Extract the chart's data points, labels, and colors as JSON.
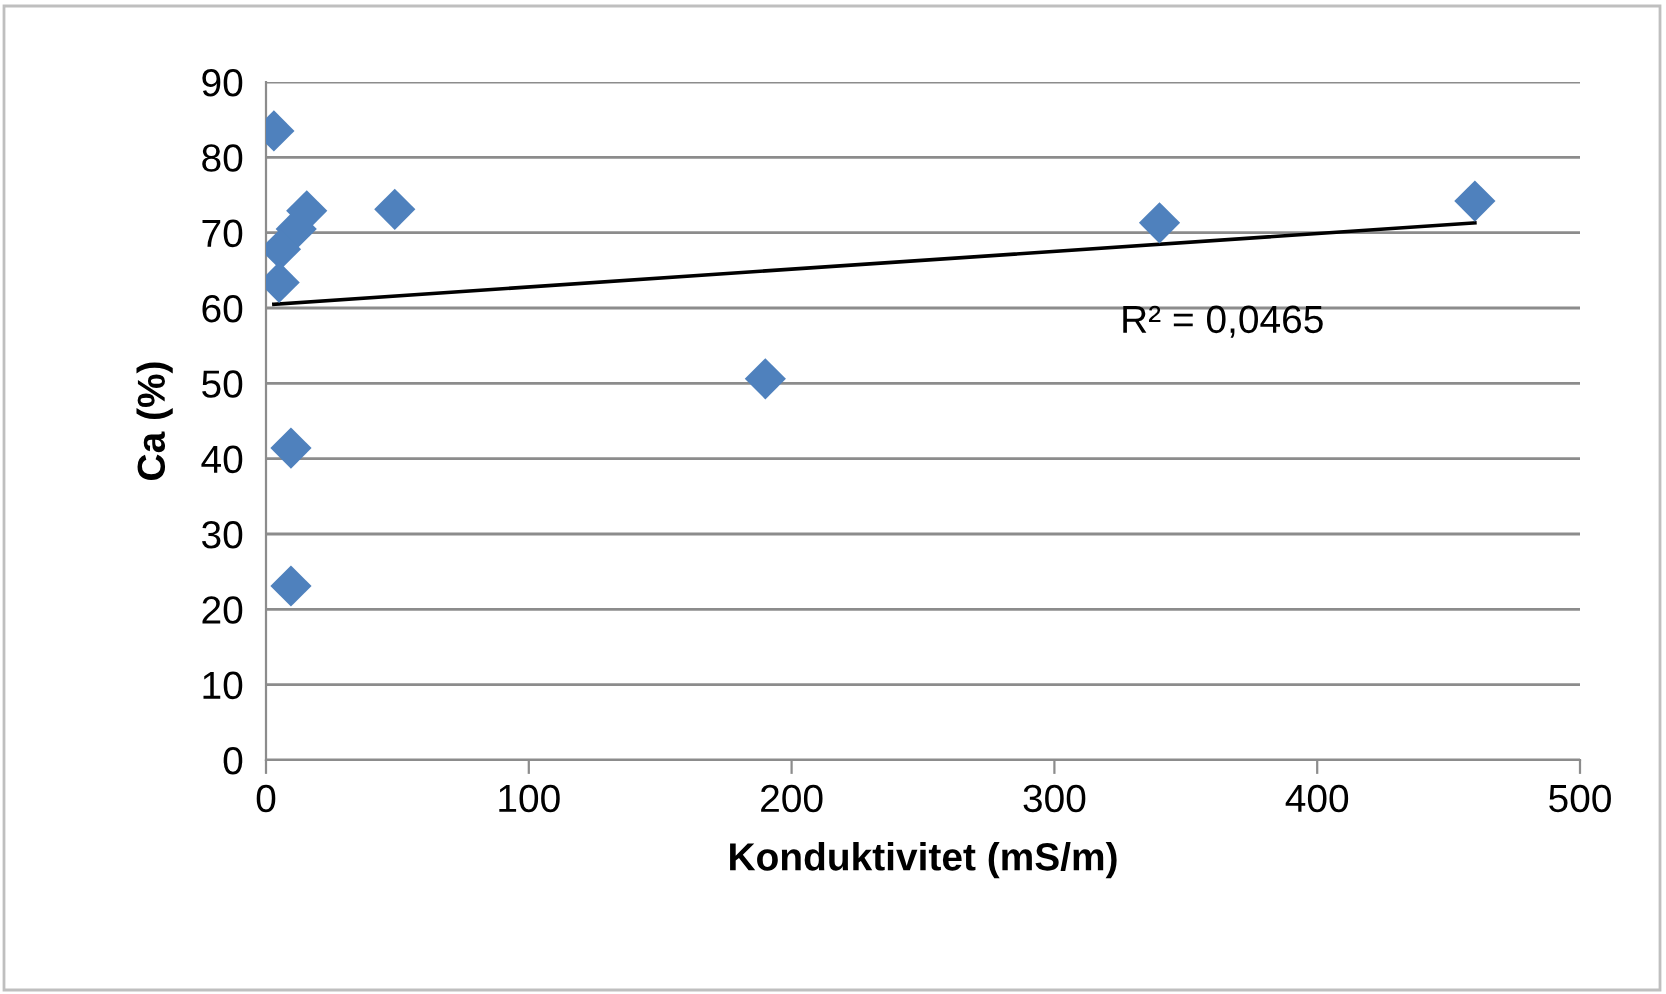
{
  "chart_data": {
    "type": "scatter",
    "xlabel": "Konduktivitet (mS/m)",
    "ylabel": "Ca (%)",
    "xlim": [
      0,
      500
    ],
    "xticks": [
      0,
      100,
      200,
      300,
      400,
      500
    ],
    "ylim": [
      0,
      90
    ],
    "yticks": [
      0,
      10,
      20,
      30,
      40,
      50,
      60,
      70,
      80,
      90
    ],
    "grid": "y",
    "series": [
      {
        "marker": "diamond",
        "color": "#4f81bd",
        "x": [
          3,
          15.5,
          49,
          11.5,
          5.5,
          5,
          9.5,
          9.5,
          340,
          460,
          190
        ],
        "values": [
          83.5,
          72.9,
          73.1,
          70.5,
          67.8,
          63.4,
          41.4,
          23.1,
          71.3,
          74.2,
          50.6
        ]
      },
      {
        "type": "line",
        "marker": "none",
        "color": "#000000",
        "x": [
          3,
          460
        ],
        "values": [
          60.5,
          71.3
        ]
      }
    ],
    "annotations": [
      "R² = 0,0465"
    ]
  }
}
